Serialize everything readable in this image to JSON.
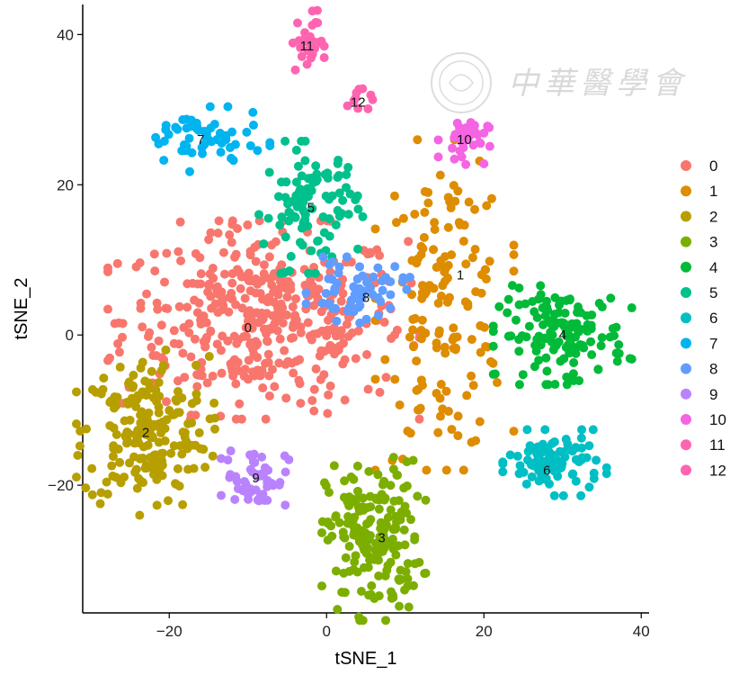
{
  "chart_data": {
    "type": "scatter",
    "xlabel": "tSNE_1",
    "ylabel": "tSNE_2",
    "xlim": [
      -31,
      41
    ],
    "ylim": [
      -37,
      44
    ],
    "xticks": [
      -20,
      0,
      20,
      40
    ],
    "yticks": [
      -20,
      0,
      20,
      40
    ],
    "grid": false,
    "legend_position": "right",
    "series": [
      {
        "name": "0",
        "color": "#F8766D",
        "label": "0",
        "center": [
          -8,
          2
        ],
        "spread": [
          9,
          6
        ],
        "label_pos": [
          -10,
          1
        ],
        "n": 420
      },
      {
        "name": "1",
        "color": "#DE8C00",
        "label": "1",
        "center": [
          15,
          4
        ],
        "spread": [
          4,
          10
        ],
        "label_pos": [
          17,
          8
        ],
        "n": 150
      },
      {
        "name": "2",
        "color": "#B79F00",
        "label": "2",
        "center": [
          -23,
          -13
        ],
        "spread": [
          4,
          5
        ],
        "label_pos": [
          -23,
          -13
        ],
        "n": 200
      },
      {
        "name": "3",
        "color": "#7CAE00",
        "label": "3",
        "center": [
          6,
          -27
        ],
        "spread": [
          3,
          5
        ],
        "label_pos": [
          7,
          -27
        ],
        "n": 190
      },
      {
        "name": "4",
        "color": "#00BA38",
        "label": "4",
        "center": [
          30,
          0
        ],
        "spread": [
          4,
          3
        ],
        "label_pos": [
          30,
          0
        ],
        "n": 140
      },
      {
        "name": "5",
        "color": "#00C08B",
        "label": "5",
        "center": [
          -2,
          17
        ],
        "spread": [
          3,
          4
        ],
        "label_pos": [
          -2,
          17
        ],
        "n": 100
      },
      {
        "name": "6",
        "color": "#00BFC4",
        "label": "6",
        "center": [
          29,
          -17
        ],
        "spread": [
          3,
          2
        ],
        "label_pos": [
          28,
          -18
        ],
        "n": 90
      },
      {
        "name": "7",
        "color": "#00B4F0",
        "label": "7",
        "center": [
          -16,
          26
        ],
        "spread": [
          4,
          2
        ],
        "label_pos": [
          -16,
          26
        ],
        "n": 60
      },
      {
        "name": "8",
        "color": "#619CFF",
        "label": "8",
        "center": [
          4,
          6
        ],
        "spread": [
          3,
          2
        ],
        "label_pos": [
          5,
          5
        ],
        "n": 60
      },
      {
        "name": "9",
        "color": "#B983FF",
        "label": "9",
        "center": [
          -9,
          -19
        ],
        "spread": [
          2,
          2
        ],
        "label_pos": [
          -9,
          -19
        ],
        "n": 55
      },
      {
        "name": "10",
        "color": "#F564E3",
        "label": "10",
        "center": [
          17.5,
          26
        ],
        "spread": [
          1.5,
          1.5
        ],
        "label_pos": [
          17.5,
          26
        ],
        "n": 35
      },
      {
        "name": "11",
        "color": "#FF64B0",
        "label": "11",
        "center": [
          -2.5,
          39
        ],
        "spread": [
          1,
          2
        ],
        "label_pos": [
          -2.5,
          38.5
        ],
        "n": 30
      },
      {
        "name": "12",
        "color": "#FF64B0",
        "label": "12",
        "center": [
          4,
          31
        ],
        "spread": [
          1,
          1
        ],
        "label_pos": [
          4,
          31
        ],
        "n": 10
      }
    ]
  },
  "watermark": {
    "text": "中華醫學會"
  }
}
